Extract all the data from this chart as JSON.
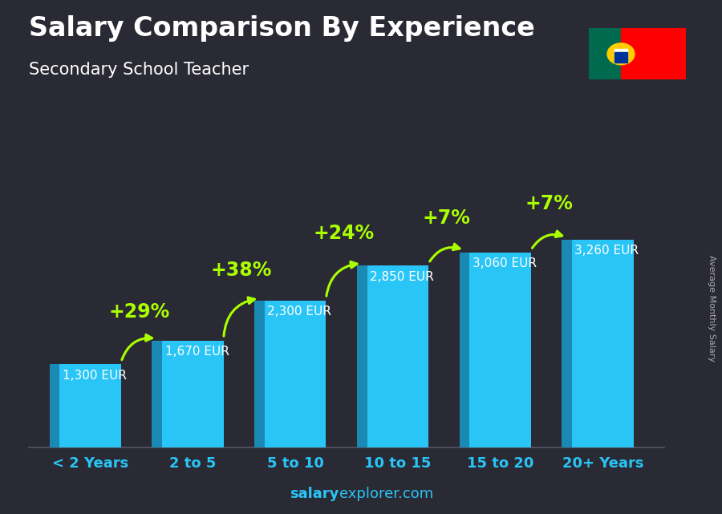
{
  "title": "Salary Comparison By Experience",
  "subtitle": "Secondary School Teacher",
  "categories": [
    "< 2 Years",
    "2 to 5",
    "5 to 10",
    "10 to 15",
    "15 to 20",
    "20+ Years"
  ],
  "values": [
    1300,
    1670,
    2300,
    2850,
    3060,
    3260
  ],
  "bar_face_color": "#29c5f6",
  "bar_dark_color": "#1a8ab5",
  "bar_top_color": "#7de8ff",
  "pct_labels": [
    "+29%",
    "+38%",
    "+24%",
    "+7%",
    "+7%"
  ],
  "pct_color": "#aaff00",
  "pct_fontsize": 17,
  "salary_labels": [
    "1,300 EUR",
    "1,670 EUR",
    "2,300 EUR",
    "2,850 EUR",
    "3,060 EUR",
    "3,260 EUR"
  ],
  "salary_label_color": "#ffffff",
  "salary_fontsize": 11,
  "xlabel_color": "#29c5f6",
  "xlabel_fontsize": 13,
  "title_color": "#ffffff",
  "title_fontsize": 24,
  "subtitle_color": "#ffffff",
  "subtitle_fontsize": 15,
  "bg_color": "#2a2a35",
  "watermark_bold": "salary",
  "watermark_normal": "explorer.com",
  "watermark_color": "#29c5f6",
  "watermark_fontsize": 13,
  "ylabel_text": "Average Monthly Salary",
  "ylabel_color": "#aaaaaa",
  "ylabel_fontsize": 8,
  "ylim": [
    0,
    4200
  ],
  "bar_width": 0.6,
  "flag_green": "#006a4e",
  "flag_red": "#ff0000",
  "flag_yellow": "#ffcc00"
}
